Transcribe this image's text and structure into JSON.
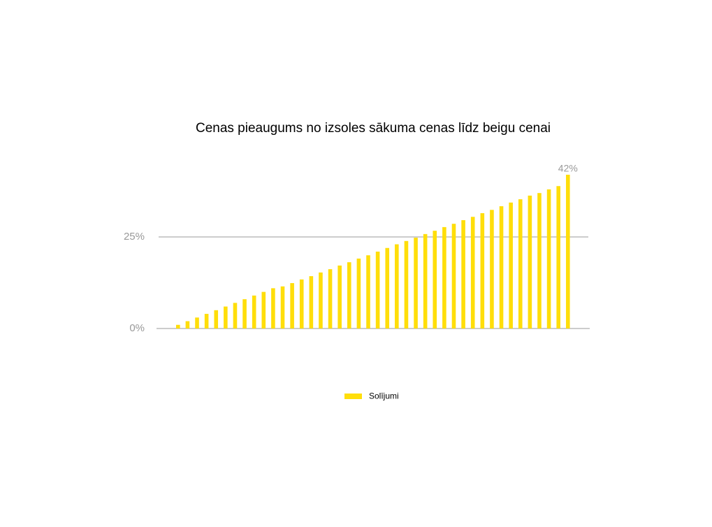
{
  "chart_data": {
    "type": "bar",
    "title": "Cenas pieaugums no izsoles sākuma cenas līdz beigu cenai",
    "categories": [
      null,
      null,
      null,
      null,
      null,
      null,
      null,
      null,
      null,
      null,
      null,
      null,
      null,
      null,
      null,
      null,
      null,
      null,
      null,
      null,
      null,
      null,
      null,
      null,
      null,
      null,
      null,
      null,
      null,
      null,
      null,
      null,
      null,
      null,
      null,
      null,
      null,
      null,
      null,
      null,
      null,
      null
    ],
    "series": [
      {
        "name": "Solījumi",
        "color": "#ffde0a",
        "values": [
          1,
          2,
          3,
          4,
          5,
          6,
          7,
          8,
          9,
          10,
          11,
          11.5,
          12.4,
          13.4,
          14.3,
          15.3,
          16.2,
          17.2,
          18.1,
          19.1,
          20,
          21,
          22,
          23,
          23.9,
          24.8,
          25.8,
          26.7,
          27.7,
          28.6,
          29.6,
          30.5,
          31.5,
          32.4,
          33.4,
          34.4,
          35.3,
          36.3,
          37,
          38,
          38.9,
          42
        ],
        "value_labels": [
          null,
          null,
          null,
          null,
          null,
          null,
          null,
          null,
          null,
          null,
          null,
          null,
          null,
          null,
          null,
          null,
          null,
          null,
          null,
          null,
          null,
          null,
          null,
          null,
          null,
          null,
          null,
          null,
          null,
          null,
          null,
          null,
          null,
          null,
          null,
          null,
          null,
          null,
          null,
          null,
          null,
          "42%"
        ]
      }
    ],
    "ylim": [
      0,
      42
    ],
    "yticks": [
      {
        "value": 0,
        "label": "0%"
      },
      {
        "value": 25,
        "label": "25%"
      }
    ],
    "grid": true,
    "legend": "bottom"
  }
}
